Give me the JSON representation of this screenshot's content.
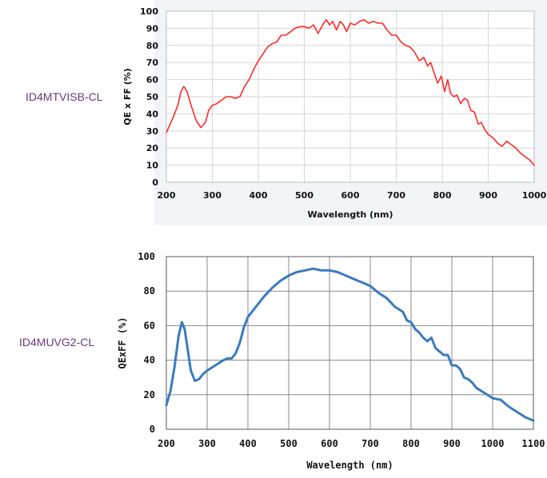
{
  "labels": {
    "chart1_model": "ID4MTVISB-CL",
    "chart2_model": "ID4MUVG2-CL"
  },
  "colors": {
    "chart1_line": "#ff2a2a",
    "chart2_line": "#3a7bbd",
    "label_text": "#6b3a7a"
  },
  "chart_data": [
    {
      "type": "line",
      "xlabel": "Wavelength (nm)",
      "ylabel": "QE x FF (%)",
      "xlim": [
        200,
        1000
      ],
      "ylim": [
        0,
        100
      ],
      "xticks": [
        200,
        300,
        400,
        500,
        600,
        700,
        800,
        900,
        1000
      ],
      "yticks": [
        0,
        10,
        20,
        30,
        40,
        50,
        60,
        70,
        80,
        90,
        100
      ],
      "grid": true,
      "series": [
        {
          "x": [
            200,
            215,
            225,
            232,
            238,
            245,
            255,
            265,
            275,
            285,
            292,
            300,
            310,
            320,
            330,
            340,
            350,
            360,
            370,
            380,
            390,
            400,
            410,
            420,
            430,
            440,
            450,
            460,
            470,
            480,
            490,
            500,
            510,
            520,
            530,
            540,
            548,
            555,
            562,
            570,
            578,
            585,
            592,
            600,
            610,
            620,
            630,
            640,
            650,
            660,
            670,
            680,
            690,
            700,
            710,
            720,
            730,
            740,
            750,
            760,
            768,
            775,
            782,
            790,
            798,
            805,
            812,
            818,
            825,
            832,
            840,
            848,
            855,
            862,
            870,
            878,
            885,
            892,
            900,
            910,
            920,
            930,
            940,
            950,
            960,
            970,
            980,
            990,
            1000
          ],
          "y": [
            29,
            38,
            45,
            53,
            56,
            53,
            44,
            36,
            32,
            35,
            42,
            45,
            46,
            48,
            50,
            50,
            49,
            50,
            56,
            60,
            66,
            71,
            75,
            79,
            81,
            82,
            86,
            86,
            88,
            90,
            91,
            91,
            90,
            92,
            87,
            92,
            95,
            92,
            94,
            89,
            94,
            92,
            88,
            93,
            92,
            94,
            95,
            93,
            94,
            93,
            93,
            89,
            86,
            86,
            82,
            80,
            79,
            76,
            71,
            73,
            68,
            70,
            64,
            58,
            62,
            53,
            60,
            52,
            50,
            51,
            46,
            49,
            48,
            42,
            41,
            34,
            35,
            31,
            28,
            26,
            23,
            21,
            24,
            22,
            20,
            17,
            15,
            13,
            10
          ]
        }
      ]
    },
    {
      "type": "line",
      "xlabel": "Wavelength (nm)",
      "ylabel": "QExFF (%)",
      "xlim": [
        200,
        1100
      ],
      "ylim": [
        0,
        100
      ],
      "xticks": [
        200,
        300,
        400,
        500,
        600,
        700,
        800,
        900,
        1000,
        1100
      ],
      "yticks": [
        0,
        20,
        40,
        60,
        80,
        100
      ],
      "grid": true,
      "series": [
        {
          "x": [
            200,
            210,
            220,
            230,
            238,
            245,
            252,
            260,
            270,
            280,
            290,
            300,
            320,
            340,
            350,
            360,
            370,
            380,
            390,
            400,
            420,
            440,
            460,
            480,
            500,
            520,
            540,
            560,
            580,
            600,
            620,
            640,
            660,
            680,
            700,
            720,
            740,
            760,
            780,
            790,
            800,
            810,
            820,
            830,
            840,
            850,
            860,
            870,
            880,
            890,
            900,
            910,
            920,
            930,
            940,
            950,
            960,
            980,
            1000,
            1020,
            1040,
            1060,
            1080,
            1100
          ],
          "y": [
            14,
            22,
            36,
            54,
            62,
            58,
            47,
            34,
            28,
            29,
            32,
            34,
            37,
            40,
            41,
            41,
            44,
            50,
            59,
            65,
            71,
            77,
            82,
            86,
            89,
            91,
            92,
            93,
            92,
            92,
            91,
            89,
            87,
            85,
            83,
            79,
            76,
            71,
            68,
            63,
            62,
            58,
            56,
            53,
            51,
            53,
            47,
            45,
            43,
            43,
            37,
            37,
            35,
            30,
            29,
            27,
            24,
            21,
            18,
            17,
            13,
            10,
            7,
            5
          ]
        }
      ]
    }
  ]
}
